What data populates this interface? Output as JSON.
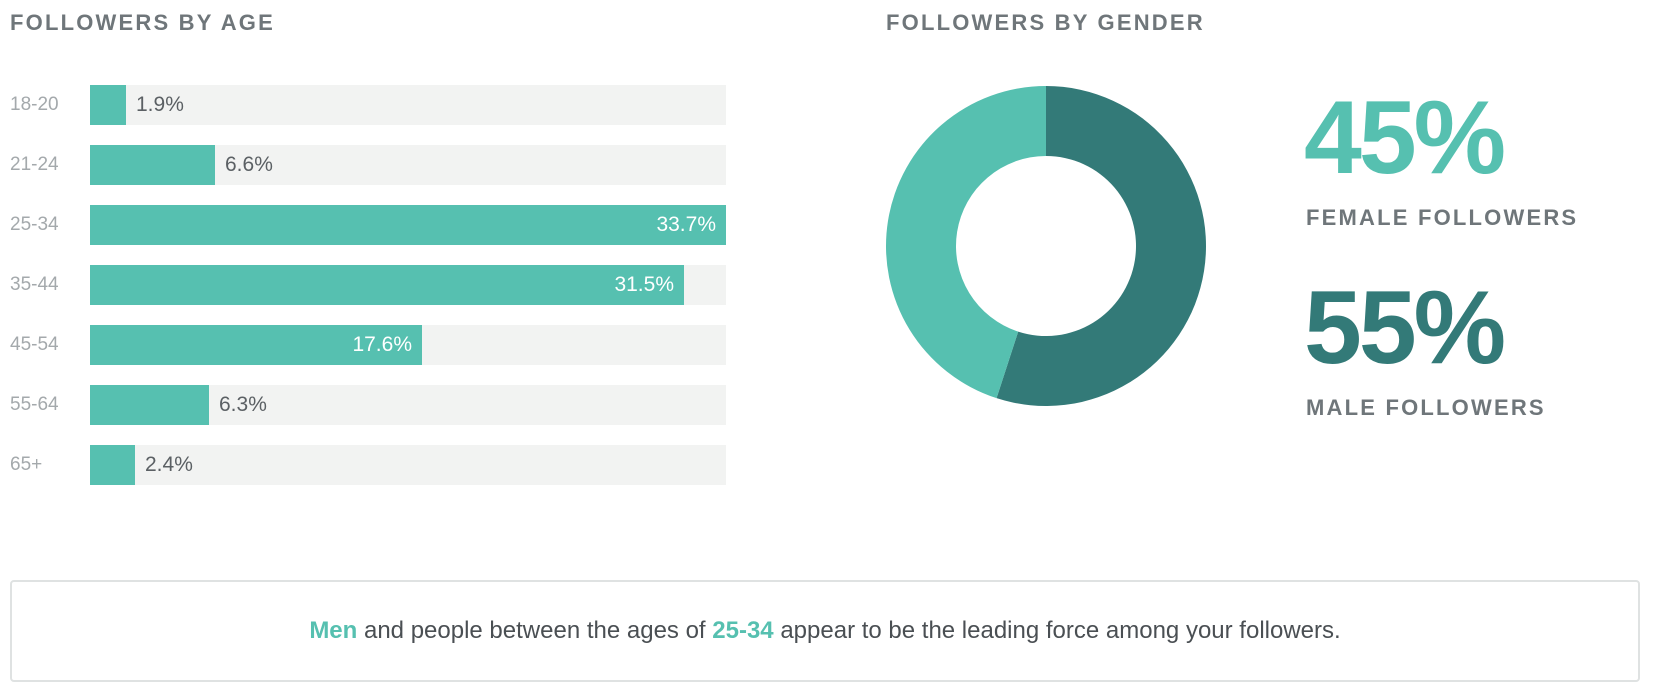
{
  "age_section": {
    "title": "FOLLOWERS BY AGE"
  },
  "gender_section": {
    "title": "FOLLOWERS BY GENDER",
    "female": {
      "value": "45%",
      "label": "FEMALE FOLLOWERS"
    },
    "male": {
      "value": "55%",
      "label": "MALE FOLLOWERS"
    }
  },
  "summary": {
    "highlight_1": "Men",
    "text_1": " and people between the ages of ",
    "highlight_2": "25-34",
    "text_2": " appear to be the leading force among your followers."
  },
  "colors": {
    "accent": "#56c0b0",
    "dark_accent": "#337a78",
    "track": "#f2f3f2"
  },
  "chart_data": [
    {
      "type": "bar",
      "orientation": "horizontal",
      "title": "FOLLOWERS BY AGE",
      "categories": [
        "18-20",
        "21-24",
        "25-34",
        "35-44",
        "45-54",
        "55-64",
        "65+"
      ],
      "values": [
        1.9,
        6.6,
        33.7,
        31.5,
        17.6,
        6.3,
        2.4
      ],
      "value_labels": [
        "1.9%",
        "6.6%",
        "33.7%",
        "31.5%",
        "17.6%",
        "6.3%",
        "2.4%"
      ],
      "max_value": 33.7
    },
    {
      "type": "pie",
      "donut": true,
      "title": "FOLLOWERS BY GENDER",
      "categories": [
        "FEMALE FOLLOWERS",
        "MALE FOLLOWERS"
      ],
      "values": [
        45,
        55
      ],
      "colors": [
        "#56c0b0",
        "#337a78"
      ]
    }
  ]
}
